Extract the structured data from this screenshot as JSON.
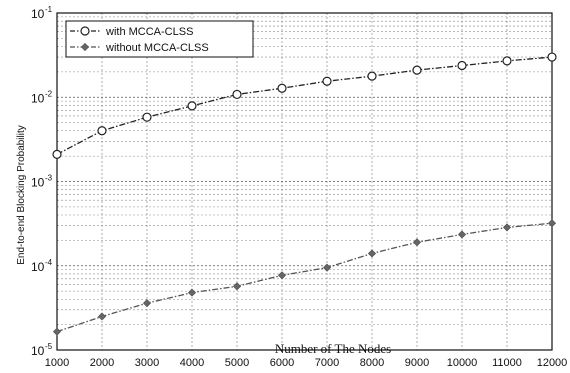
{
  "chart_data": {
    "type": "line",
    "xlabel": "Number of The Nodes",
    "ylabel": "End-to-end Blocking Probability",
    "x": [
      1000,
      2000,
      3000,
      4000,
      5000,
      6000,
      7000,
      8000,
      9000,
      10000,
      11000,
      12000
    ],
    "x_tick_labels": [
      "1000",
      "2000",
      "3000",
      "4000",
      "5000",
      "6000",
      "7000",
      "8000",
      "9000",
      "10000",
      "11000",
      "12000"
    ],
    "y_scale": "log",
    "ylim": [
      1e-05,
      0.1
    ],
    "y_ticks": [
      {
        "base": "10",
        "exp": "-5"
      },
      {
        "base": "10",
        "exp": "-4"
      },
      {
        "base": "10",
        "exp": "-3"
      },
      {
        "base": "10",
        "exp": "-2"
      },
      {
        "base": "10",
        "exp": "-1"
      }
    ],
    "grid": true,
    "legend_position": "top-left",
    "series": [
      {
        "name": "with MCCA-CLSS",
        "marker": "circle",
        "values": [
          0.0021,
          0.004,
          0.0058,
          0.0079,
          0.0108,
          0.0128,
          0.0155,
          0.0178,
          0.021,
          0.0238,
          0.027,
          0.03
        ]
      },
      {
        "name": "without MCCA-CLSS",
        "marker": "diamond",
        "values": [
          1.65e-05,
          2.5e-05,
          3.6e-05,
          4.8e-05,
          5.7e-05,
          7.7e-05,
          9.5e-05,
          0.00014,
          0.00019,
          0.000235,
          0.000285,
          0.00032
        ]
      }
    ]
  }
}
